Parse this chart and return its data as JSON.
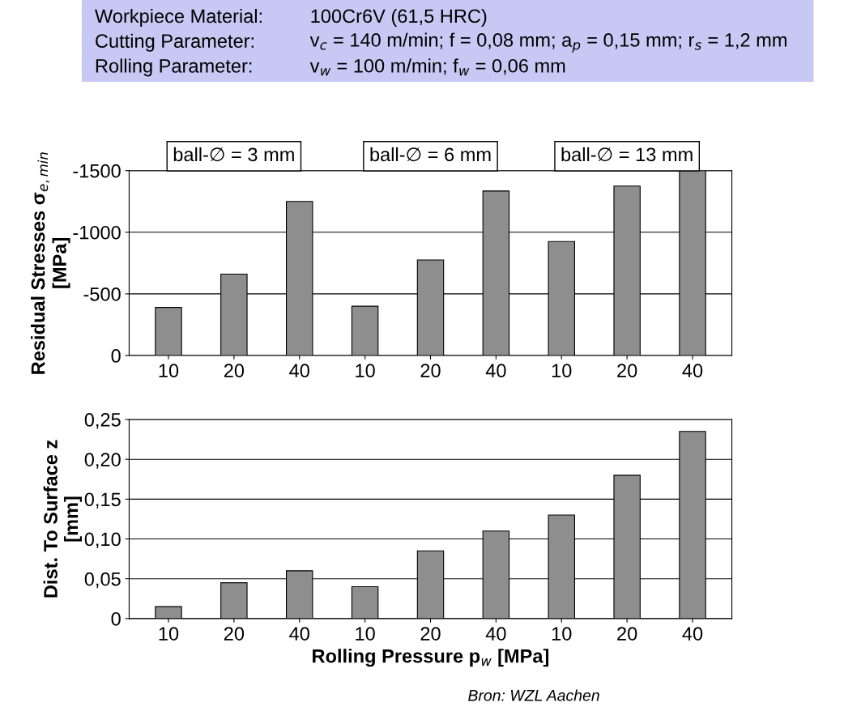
{
  "chart_data": [
    {
      "type": "bar",
      "ylabel": "Residual Stresses σ$_{e,min}$\n[MPa]",
      "categories": [
        "10",
        "20",
        "40",
        "10",
        "20",
        "40",
        "10",
        "20",
        "40"
      ],
      "values": [
        -390,
        -660,
        -1250,
        -400,
        -775,
        -1335,
        -925,
        -1375,
        -1500
      ],
      "color": "#8e8e8e",
      "ylim": [
        0,
        -1500
      ],
      "yticks": [
        0,
        -500,
        -1000,
        -1500
      ],
      "grid": "y",
      "annotations": [
        "Workpiece Material:",
        "100Cr6V (61,5 HRC)",
        "Cutting Parameter:",
        "v$_{c}$ = 140 m/min; f = 0,08 mm; a$_{p}$ = 0,15 mm; r$_{s}$ = 1,2 mm",
        "Rolling Parameter:",
        "v$_{w}$ = 100 m/min; f$_{w}$ = 0,06 mm",
        "ball-∅ = 3 mm",
        "ball-∅ = 6 mm",
        "ball-∅ = 13 mm"
      ]
    },
    {
      "type": "bar",
      "ylabel": "Dist. To Surface z\n[mm]",
      "xlabel": "Rolling Pressure p$_{w}$ [MPa]",
      "categories": [
        "10",
        "20",
        "40",
        "10",
        "20",
        "40",
        "10",
        "20",
        "40"
      ],
      "values": [
        0.015,
        0.045,
        0.06,
        0.04,
        0.085,
        0.11,
        0.13,
        0.18,
        0.235
      ],
      "color": "#8e8e8e",
      "ylim": [
        0,
        0.25
      ],
      "yticks": [
        {
          "value": 0,
          "label": "0"
        },
        {
          "value": 0.05,
          "label": "0,05"
        },
        {
          "value": 0.1,
          "label": "0,10"
        },
        {
          "value": 0.15,
          "label": "0,15"
        },
        {
          "value": 0.2,
          "label": "0,20"
        },
        {
          "value": 0.25,
          "label": "0,25"
        }
      ],
      "grid": "y",
      "annotations": [
        "Bron: WZL Aachen"
      ]
    }
  ]
}
